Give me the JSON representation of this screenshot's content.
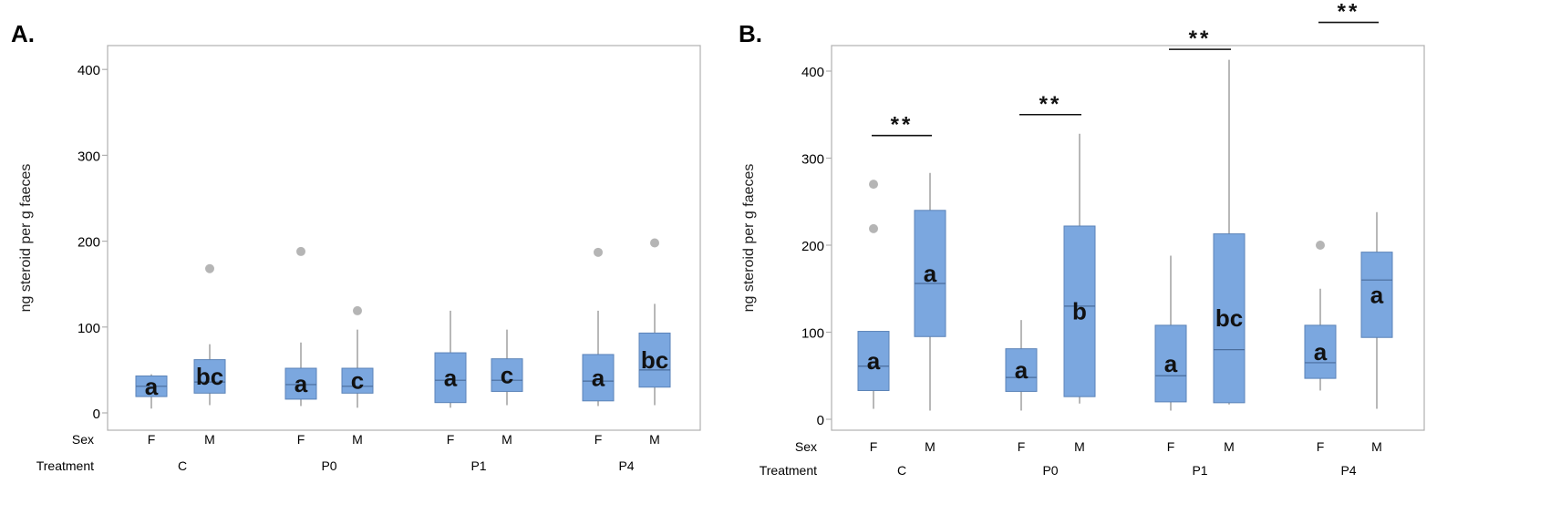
{
  "colors": {
    "box_fill": "#7ba7df",
    "box_edge": "#5b83b8",
    "whisker": "#9a9a9a",
    "outlier": "#b5b5b5",
    "frame": "#b0b0b0",
    "text": "#000000"
  },
  "chart_data": [
    {
      "panel_label": "A.",
      "type": "boxplot",
      "ylabel": "ng steroid per g faeces",
      "ylim": [
        0,
        420
      ],
      "yticks": [
        "0",
        "100",
        "200",
        "300",
        "400"
      ],
      "yvalues": [
        0,
        100,
        200,
        300,
        400
      ],
      "row_labels": [
        "Sex",
        "Treatment"
      ],
      "treatments": [
        "C",
        "P0",
        "P1",
        "P4"
      ],
      "groups": [
        {
          "treatment": "C",
          "sex": "F",
          "min": 5,
          "q1": 19,
          "median": 31,
          "q3": 43,
          "max": 45,
          "outliers": [],
          "letter": "a"
        },
        {
          "treatment": "C",
          "sex": "M",
          "min": 9,
          "q1": 23,
          "median": 36,
          "q3": 62,
          "max": 80,
          "outliers": [
            168
          ],
          "letter": "bc"
        },
        {
          "treatment": "P0",
          "sex": "F",
          "min": 8,
          "q1": 16,
          "median": 33,
          "q3": 52,
          "max": 82,
          "outliers": [
            188
          ],
          "letter": "a"
        },
        {
          "treatment": "P0",
          "sex": "M",
          "min": 6,
          "q1": 23,
          "median": 31,
          "q3": 52,
          "max": 97,
          "outliers": [
            119
          ],
          "letter": "c"
        },
        {
          "treatment": "P1",
          "sex": "F",
          "min": 6,
          "q1": 12,
          "median": 38,
          "q3": 70,
          "max": 119,
          "outliers": [],
          "letter": "a"
        },
        {
          "treatment": "P1",
          "sex": "M",
          "min": 9,
          "q1": 25,
          "median": 38,
          "q3": 63,
          "max": 97,
          "outliers": [],
          "letter": "c"
        },
        {
          "treatment": "P4",
          "sex": "F",
          "min": 8,
          "q1": 14,
          "median": 37,
          "q3": 68,
          "max": 119,
          "outliers": [
            187
          ],
          "letter": "a"
        },
        {
          "treatment": "P4",
          "sex": "M",
          "min": 9,
          "q1": 30,
          "median": 50,
          "q3": 93,
          "max": 127,
          "outliers": [
            198
          ],
          "letter": "bc"
        }
      ],
      "significance": []
    },
    {
      "panel_label": "B.",
      "type": "boxplot",
      "ylabel": "ng steroid per g faeces",
      "ylim": [
        -5,
        440
      ],
      "yticks": [
        "0",
        "100",
        "200",
        "300",
        "400"
      ],
      "yvalues": [
        0,
        100,
        200,
        300,
        400
      ],
      "row_labels": [
        "Sex",
        "Treatment"
      ],
      "treatments": [
        "C",
        "P0",
        "P1",
        "P4"
      ],
      "groups": [
        {
          "treatment": "C",
          "sex": "F",
          "min": 12,
          "q1": 33,
          "median": 61,
          "q3": 101,
          "max": 101,
          "outliers": [
            219,
            270
          ],
          "letter": "a"
        },
        {
          "treatment": "C",
          "sex": "M",
          "min": 10,
          "q1": 95,
          "median": 156,
          "q3": 240,
          "max": 283,
          "outliers": [],
          "letter": "a"
        },
        {
          "treatment": "P0",
          "sex": "F",
          "min": 10,
          "q1": 32,
          "median": 48,
          "q3": 81,
          "max": 114,
          "outliers": [],
          "letter": "a"
        },
        {
          "treatment": "P0",
          "sex": "M",
          "min": 18,
          "q1": 26,
          "median": 130,
          "q3": 222,
          "max": 328,
          "outliers": [],
          "letter": "b"
        },
        {
          "treatment": "P1",
          "sex": "F",
          "min": 10,
          "q1": 20,
          "median": 50,
          "q3": 108,
          "max": 188,
          "outliers": [],
          "letter": "a"
        },
        {
          "treatment": "P1",
          "sex": "M",
          "min": 17,
          "q1": 19,
          "median": 80,
          "q3": 213,
          "max": 413,
          "outliers": [],
          "letter": "bc"
        },
        {
          "treatment": "P4",
          "sex": "F",
          "min": 33,
          "q1": 47,
          "median": 65,
          "q3": 108,
          "max": 150,
          "outliers": [
            200
          ],
          "letter": "a"
        },
        {
          "treatment": "P4",
          "sex": "M",
          "min": 12,
          "q1": 94,
          "median": 160,
          "q3": 192,
          "max": 238,
          "outliers": [],
          "letter": "a"
        }
      ],
      "significance": [
        {
          "treatment": "C",
          "label": "**",
          "y": 326
        },
        {
          "treatment": "P0",
          "label": "**",
          "y": 350
        },
        {
          "treatment": "P1",
          "label": "**",
          "y": 425
        },
        {
          "treatment": "P4",
          "label": "**",
          "y": 456
        }
      ]
    }
  ]
}
